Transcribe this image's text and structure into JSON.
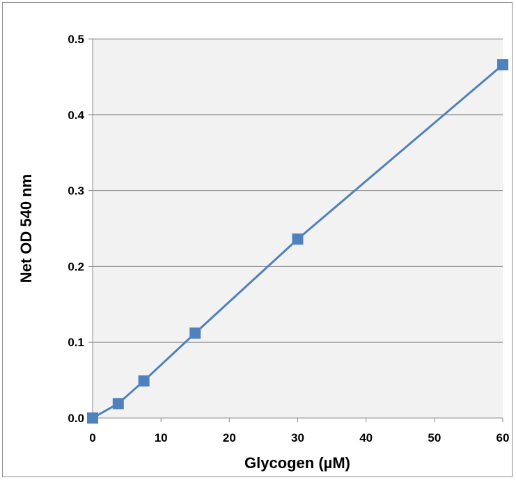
{
  "chart_data": {
    "type": "line",
    "title": "",
    "xlabel": "Glycogen (µM)",
    "ylabel": "Net OD 540 nm",
    "xlim": [
      0,
      60
    ],
    "ylim": [
      0,
      0.5
    ],
    "x_ticks": [
      0,
      10,
      20,
      30,
      40,
      50,
      60
    ],
    "y_ticks": [
      0.0,
      0.1,
      0.2,
      0.3,
      0.4,
      0.5
    ],
    "x_tick_labels": [
      "0",
      "10",
      "20",
      "30",
      "40",
      "50",
      "60"
    ],
    "y_tick_labels": [
      "0.0",
      "0.1",
      "0.2",
      "0.3",
      "0.4",
      "0.5"
    ],
    "grid": {
      "horizontal": true,
      "vertical": false
    },
    "legend": "none",
    "series": [
      {
        "x": [
          0,
          3.75,
          7.5,
          15,
          30,
          60
        ],
        "y": [
          0.0,
          0.019,
          0.049,
          0.112,
          0.236,
          0.466
        ],
        "color": "#4f81bd",
        "marker": "square"
      }
    ],
    "plot_background": "#f2f2f2"
  }
}
